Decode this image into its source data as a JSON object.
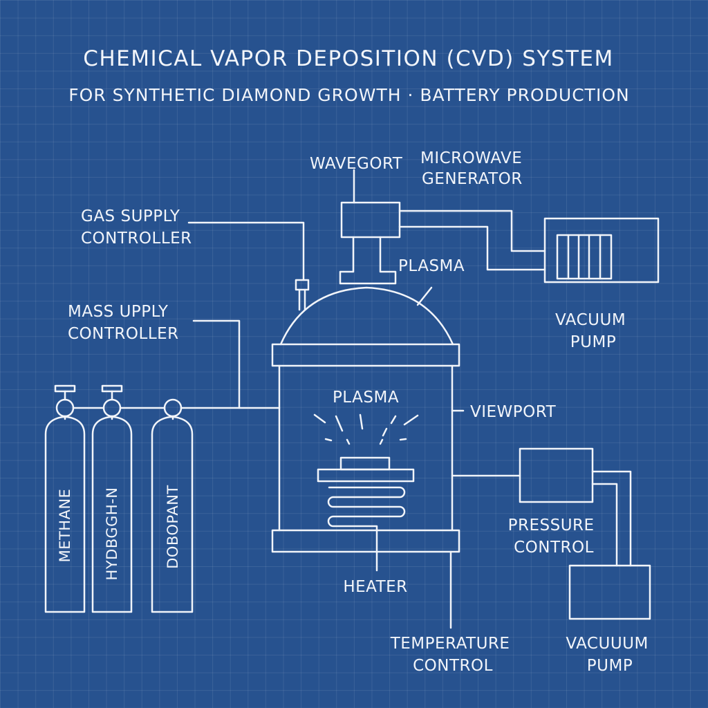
{
  "title": "CHEMICAL VAPOR DEPOSITION (CVD) SYSTEM",
  "subtitle": "FOR SYNTHETIC DIAMOND GROWTH · BATTERY PRODUCTION",
  "labels": {
    "waveguide": "WAVEGORT",
    "microwave_generator": [
      "MICROWAVE",
      "GENERATOR"
    ],
    "gas_supply_controller": [
      "GAS SUPPLY",
      "CONTROLLER"
    ],
    "plasma_top": "PLASMA",
    "mass_supply_controller": [
      "MASS UPPLY",
      "CONTROLLER"
    ],
    "vacuum_pump_top": [
      "VACUUM",
      "PUMP"
    ],
    "plasma_chamber": "PLASMA",
    "viewport": "VIEWPORT",
    "pressure_control": [
      "PRESSURE",
      "CONTROL"
    ],
    "heater": "HEATER",
    "temperature_control": [
      "TEMPERATURE",
      "CONTROL"
    ],
    "vacuum_pump_bottom": [
      "VACUUUM",
      "PUMP"
    ]
  },
  "tanks": [
    "METHANE",
    "HYDBGGH-N",
    "DOBOPANT"
  ]
}
